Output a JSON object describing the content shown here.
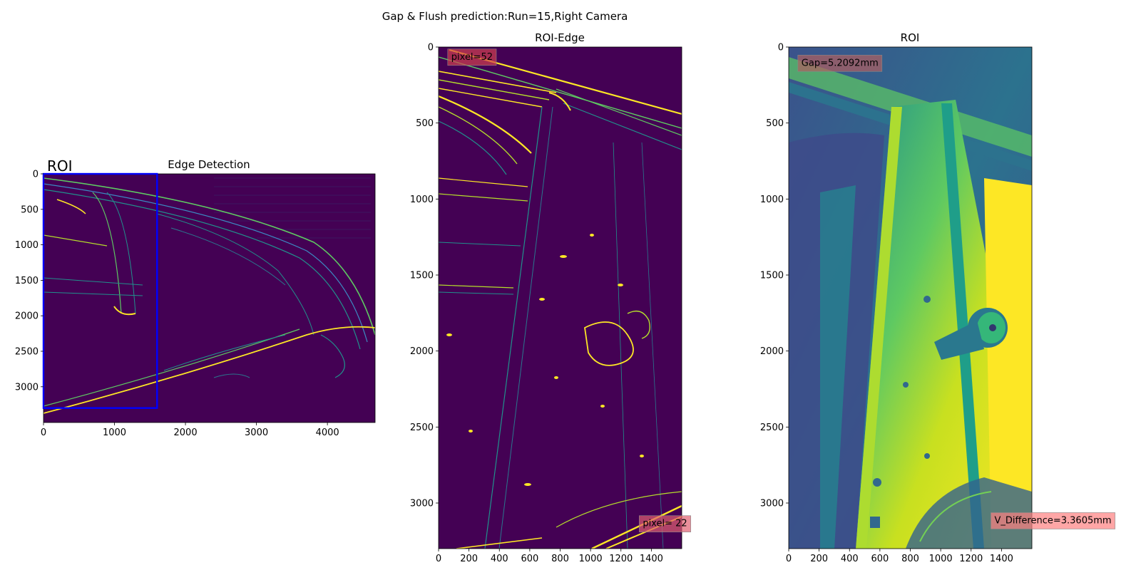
{
  "figure": {
    "suptitle": "Gap & Flush prediction:Run=15,Right Camera"
  },
  "chart_data": [
    {
      "type": "image",
      "title": "Edge Detection",
      "xlim": [
        0,
        4672
      ],
      "ylim": [
        3504,
        0
      ],
      "xticks": [
        0,
        1000,
        2000,
        3000,
        4000
      ],
      "yticks": [
        0,
        500,
        1000,
        1500,
        2000,
        2500,
        3000
      ],
      "colormap": "viridis",
      "roi_label": "ROI",
      "roi_rect": {
        "x0": 0,
        "y0": 0,
        "x1": 1600,
        "y1": 3300,
        "color": "#0000ff"
      }
    },
    {
      "type": "image",
      "title": "ROI-Edge",
      "xlim": [
        0,
        1600
      ],
      "ylim": [
        3300,
        0
      ],
      "xticks": [
        0,
        200,
        400,
        600,
        800,
        1000,
        1200,
        1400
      ],
      "yticks": [
        0,
        500,
        1000,
        1500,
        2000,
        2500,
        3000
      ],
      "colormap": "viridis",
      "annotations": [
        {
          "text": "pixel=52",
          "x": 60,
          "y": 60,
          "box_color": "#d04050"
        },
        {
          "text": "pixel= 22",
          "x": 1320,
          "y": 3130,
          "box_color": "#e06070"
        }
      ]
    },
    {
      "type": "image",
      "title": "ROI",
      "xlim": [
        0,
        1600
      ],
      "ylim": [
        3300,
        0
      ],
      "xticks": [
        0,
        200,
        400,
        600,
        800,
        1000,
        1200,
        1400
      ],
      "yticks": [
        0,
        500,
        1000,
        1500,
        2000,
        2500,
        3000
      ],
      "colormap": "viridis",
      "annotations": [
        {
          "text": "Gap=5.2092mm",
          "x": 60,
          "y": 100,
          "box_color": "#b06060"
        },
        {
          "text": "V_Difference=3.3605mm",
          "x": 1330,
          "y": 3110,
          "box_color": "#ff8080"
        }
      ]
    }
  ]
}
